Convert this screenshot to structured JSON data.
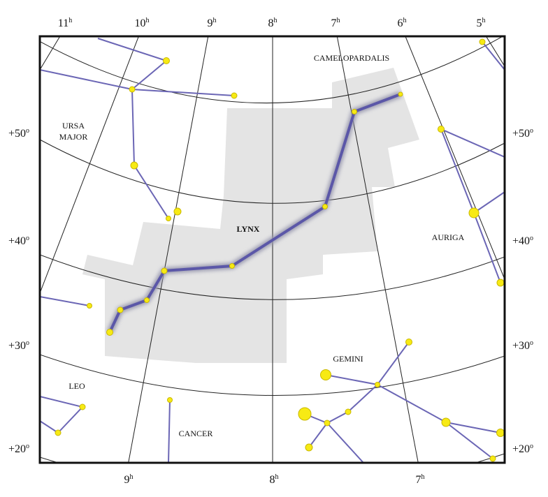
{
  "ra_top": [
    {
      "num": "11",
      "sup": "h"
    },
    {
      "num": "10",
      "sup": "h"
    },
    {
      "num": "9",
      "sup": "h"
    },
    {
      "num": "8",
      "sup": "h"
    },
    {
      "num": "7",
      "sup": "h"
    },
    {
      "num": "6",
      "sup": "h"
    },
    {
      "num": "5",
      "sup": "h"
    }
  ],
  "ra_bottom": [
    {
      "num": "9",
      "sup": "h"
    },
    {
      "num": "8",
      "sup": "h"
    },
    {
      "num": "7",
      "sup": "h"
    }
  ],
  "dec_left": [
    {
      "num": "+50",
      "sup": "o"
    },
    {
      "num": "+40",
      "sup": "o"
    },
    {
      "num": "+30",
      "sup": "o"
    },
    {
      "num": "+20",
      "sup": "o"
    }
  ],
  "dec_right": [
    {
      "num": "+50",
      "sup": "o"
    },
    {
      "num": "+40",
      "sup": "o"
    },
    {
      "num": "+30",
      "sup": "o"
    },
    {
      "num": "+20",
      "sup": "o"
    }
  ],
  "constellations": [
    {
      "lines": [
        "CAMELOPARDALIS"
      ]
    },
    {
      "lines": [
        "URSA",
        "MAJOR"
      ]
    },
    {
      "lines": [
        "LYNX"
      ]
    },
    {
      "lines": [
        "AURIGA"
      ]
    },
    {
      "lines": [
        "GEMINI"
      ]
    },
    {
      "lines": [
        "LEO"
      ]
    },
    {
      "lines": [
        "CANCER"
      ]
    }
  ]
}
